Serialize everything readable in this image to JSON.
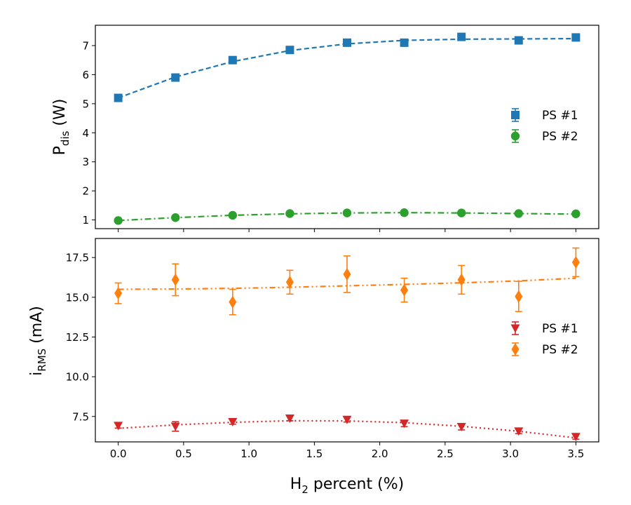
{
  "chart_data": [
    {
      "type": "scatter",
      "panel": "top",
      "ylabel_main": "P",
      "ylabel_sub": "dis",
      "ylabel_unit": "(W)",
      "ylim": [
        0.7,
        7.7
      ],
      "yticks": [
        1,
        2,
        3,
        4,
        5,
        6,
        7
      ],
      "legend_position": "center-right",
      "series": [
        {
          "name": "PS #1",
          "marker": "square",
          "color": "#1f77b4",
          "linestyle": "dashed",
          "x": [
            0.0,
            0.4375,
            0.875,
            1.3125,
            1.75,
            2.1875,
            2.625,
            3.0625,
            3.5
          ],
          "values": [
            5.2,
            5.9,
            6.5,
            6.85,
            7.1,
            7.1,
            7.3,
            7.18,
            7.28
          ],
          "errors": [
            0.05,
            0.05,
            0.05,
            0.05,
            0.05,
            0.05,
            0.05,
            0.05,
            0.05
          ],
          "fit": [
            5.2,
            5.92,
            6.45,
            6.83,
            7.06,
            7.18,
            7.22,
            7.23,
            7.24
          ]
        },
        {
          "name": "PS #2",
          "marker": "circle",
          "color": "#2ca02c",
          "linestyle": "dashdot",
          "x": [
            0.0,
            0.4375,
            0.875,
            1.3125,
            1.75,
            2.1875,
            2.625,
            3.0625,
            3.5
          ],
          "values": [
            0.98,
            1.08,
            1.16,
            1.22,
            1.24,
            1.25,
            1.24,
            1.22,
            1.21
          ],
          "errors": [
            0.03,
            0.03,
            0.03,
            0.03,
            0.03,
            0.03,
            0.03,
            0.03,
            0.03
          ],
          "fit": [
            0.98,
            1.08,
            1.16,
            1.21,
            1.24,
            1.25,
            1.24,
            1.22,
            1.2
          ]
        }
      ]
    },
    {
      "type": "scatter",
      "panel": "bottom",
      "ylabel_main": "i",
      "ylabel_sub": "RMS",
      "ylabel_unit": "(mA)",
      "ylim": [
        5.9,
        18.7
      ],
      "yticks": [
        7.5,
        10.0,
        12.5,
        15.0,
        17.5
      ],
      "ytick_labels": [
        "7.5",
        "10.0",
        "12.5",
        "15.0",
        "17.5"
      ],
      "legend_position": "center-right",
      "series": [
        {
          "name": "PS #1",
          "marker": "triangle-down",
          "color": "#d62728",
          "linestyle": "dotted",
          "x": [
            0.0,
            0.4375,
            0.875,
            1.3125,
            1.75,
            2.1875,
            2.625,
            3.0625,
            3.5
          ],
          "values": [
            6.92,
            6.87,
            7.16,
            7.38,
            7.3,
            7.06,
            6.85,
            6.57,
            6.22
          ],
          "errors": [
            0.15,
            0.3,
            0.15,
            0.15,
            0.15,
            0.2,
            0.2,
            0.15,
            0.15
          ],
          "fit": [
            6.75,
            6.97,
            7.13,
            7.23,
            7.22,
            7.11,
            6.88,
            6.57,
            6.15
          ]
        },
        {
          "name": "PS #2",
          "marker": "diamond",
          "color": "#ff7f0e",
          "linestyle": "dashdotdot",
          "x": [
            0.0,
            0.4375,
            0.875,
            1.3125,
            1.75,
            2.1875,
            2.625,
            3.0625,
            3.5
          ],
          "values": [
            15.25,
            16.1,
            14.7,
            15.95,
            16.45,
            15.45,
            16.1,
            15.05,
            17.2
          ],
          "errors": [
            0.65,
            1.0,
            0.8,
            0.75,
            1.15,
            0.75,
            0.9,
            0.95,
            0.9
          ],
          "fit": [
            15.5,
            15.52,
            15.56,
            15.63,
            15.72,
            15.81,
            15.91,
            16.03,
            16.2
          ]
        }
      ]
    }
  ],
  "xaxis": {
    "xlim": [
      -0.175,
      3.675
    ],
    "xticks": [
      0.0,
      0.5,
      1.0,
      1.5,
      2.0,
      2.5,
      3.0,
      3.5
    ],
    "xtick_labels": [
      "0.0",
      "0.5",
      "1.0",
      "1.5",
      "2.0",
      "2.5",
      "3.0",
      "3.5"
    ],
    "label_main": "H",
    "label_sub": "2",
    "label_rest": " percent (%)"
  }
}
